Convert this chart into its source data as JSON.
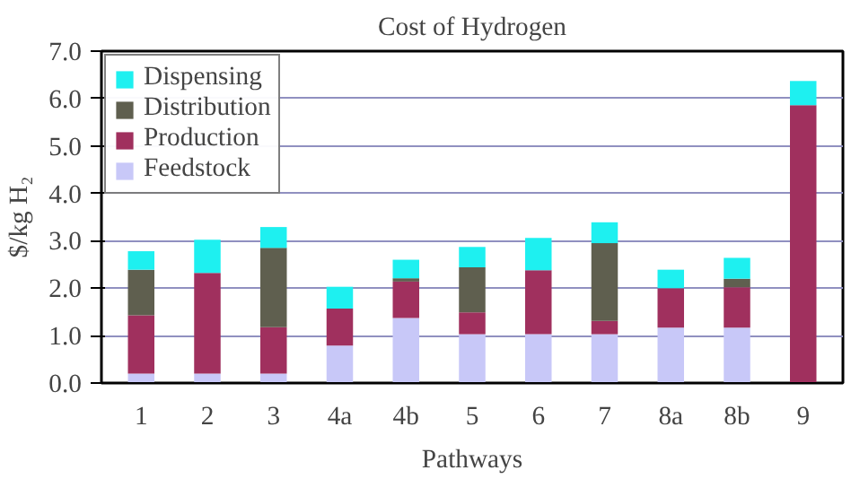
{
  "chart_data": {
    "type": "bar",
    "title": "Cost of Hydrogen",
    "xlabel": "Pathways",
    "ylabel": "$/kg H₂",
    "categories": [
      "1",
      "2",
      "3",
      "4a",
      "4b",
      "5",
      "6",
      "7",
      "8a",
      "8b",
      "9"
    ],
    "stacked": true,
    "ylim": [
      0,
      7
    ],
    "yticks": [
      {
        "value": 0,
        "label": "0.0"
      },
      {
        "value": 1,
        "label": "1.0"
      },
      {
        "value": 2,
        "label": "2.0"
      },
      {
        "value": 3,
        "label": "3.0"
      },
      {
        "value": 4,
        "label": "4.0"
      },
      {
        "value": 5,
        "label": "5.0"
      },
      {
        "value": 6,
        "label": "6.0"
      },
      {
        "value": 7,
        "label": "7.0"
      }
    ],
    "grid": "y",
    "legend": "top left",
    "series": [
      {
        "name": "Feedstock",
        "color": "#c8c8f8",
        "values": [
          0.2,
          0.2,
          0.2,
          0.79,
          1.37,
          1.03,
          1.03,
          1.03,
          1.17,
          1.17,
          0
        ]
      },
      {
        "name": "Production",
        "color": "#a0305e",
        "values": [
          1.23,
          2.12,
          0.98,
          0.78,
          0.77,
          0.46,
          1.35,
          0.28,
          0.83,
          0.85,
          5.86
        ]
      },
      {
        "name": "Distribution",
        "color": "#5f5f4f",
        "values": [
          0.96,
          0,
          1.67,
          0,
          0.07,
          0.95,
          0,
          1.64,
          0,
          0.18,
          0
        ]
      },
      {
        "name": "Dispensing",
        "color": "#1ef0f0",
        "values": [
          0.39,
          0.7,
          0.44,
          0.46,
          0.39,
          0.43,
          0.68,
          0.44,
          0.39,
          0.44,
          0.51
        ]
      }
    ]
  }
}
